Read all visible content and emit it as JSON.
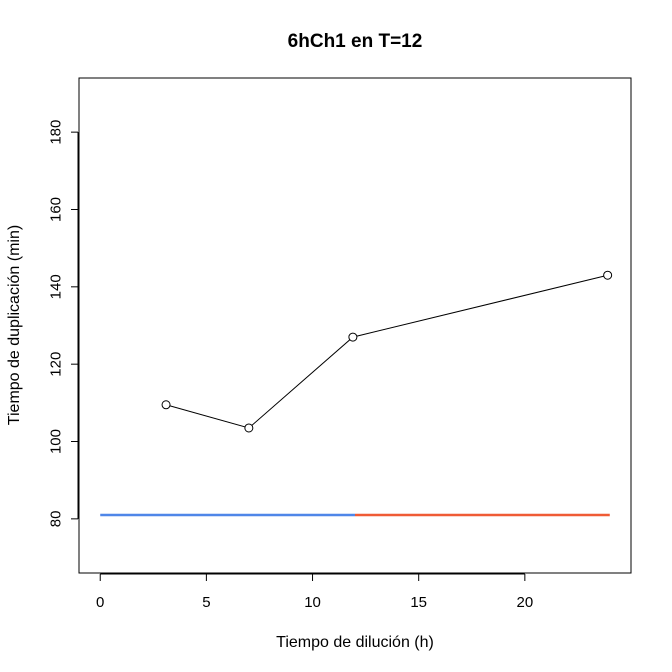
{
  "chart_data": {
    "type": "line",
    "title": "6hCh1 en T=12",
    "xlabel": "Tiempo de dilución (h)",
    "ylabel": "Tiempo de duplicación (min)",
    "xlim": [
      -1,
      25
    ],
    "ylim": [
      66,
      194
    ],
    "xticks": [
      0,
      5,
      10,
      15,
      20
    ],
    "yticks": [
      80,
      100,
      120,
      140,
      160,
      180
    ],
    "grid": false,
    "series": [
      {
        "style": "line-with-points",
        "color": "#000000",
        "points": [
          {
            "x": 3.1,
            "y": 109.5
          },
          {
            "x": 7.0,
            "y": 103.5
          },
          {
            "x": 11.9,
            "y": 127.0
          },
          {
            "x": 23.9,
            "y": 143.0
          }
        ]
      }
    ],
    "reference_segments": [
      {
        "x0": 0,
        "x1": 12,
        "y": 81,
        "color": "#4f86e8"
      },
      {
        "x0": 12,
        "x1": 24,
        "y": 81,
        "color": "#ef5b35"
      }
    ]
  }
}
